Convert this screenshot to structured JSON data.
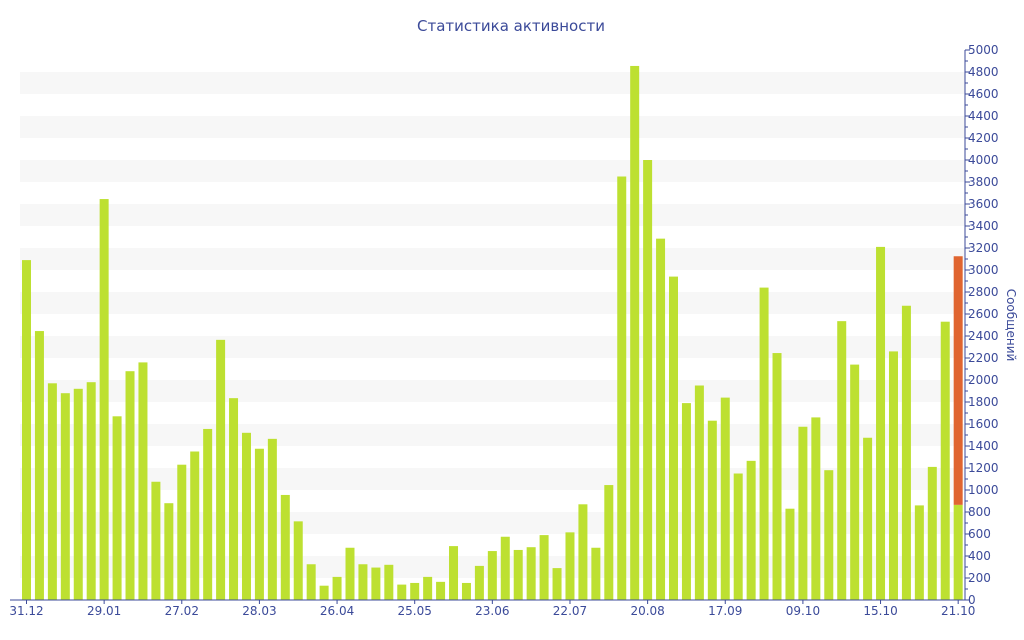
{
  "chart_data": {
    "type": "bar",
    "title": "Статистика активности",
    "ylabel": "Сообщений",
    "xlabel": "",
    "ylim": [
      0,
      5000
    ],
    "y_ticks": [
      0,
      200,
      400,
      600,
      800,
      1000,
      1200,
      1400,
      1600,
      1800,
      2000,
      2200,
      2400,
      2600,
      2800,
      3000,
      3200,
      3400,
      3600,
      3800,
      4000,
      4200,
      4400,
      4600,
      4800,
      5000
    ],
    "y_axis_position": "right",
    "grid": "alternating horizontal bands",
    "x_tick_labels": [
      "31.12",
      "29.01",
      "27.02",
      "28.03",
      "26.04",
      "25.05",
      "23.06",
      "22.07",
      "20.08",
      "17.09",
      "09.10",
      "15.10",
      "21.10"
    ],
    "x_tick_every": 6,
    "colors": {
      "bar": "#bde031",
      "highlight": "#e06530",
      "axis": "#3b4a99",
      "band": "#f7f7f7"
    },
    "values": [
      3090,
      2445,
      1970,
      1880,
      1920,
      1980,
      3645,
      1670,
      2080,
      2160,
      1075,
      880,
      1230,
      1350,
      1555,
      2365,
      1835,
      1520,
      1375,
      1465,
      955,
      715,
      325,
      130,
      210,
      475,
      325,
      295,
      320,
      140,
      155,
      210,
      165,
      490,
      155,
      310,
      445,
      575,
      455,
      480,
      590,
      290,
      615,
      870,
      475,
      1045,
      3850,
      4855,
      4000,
      3285,
      2940,
      1790,
      1950,
      1630,
      1840,
      1150,
      1265,
      2840,
      2245,
      830,
      1575,
      1660,
      1180,
      2535,
      2140,
      1475,
      3210,
      2260,
      2675,
      860,
      1210,
      2530,
      865
    ],
    "stacked_last": 2260
  }
}
